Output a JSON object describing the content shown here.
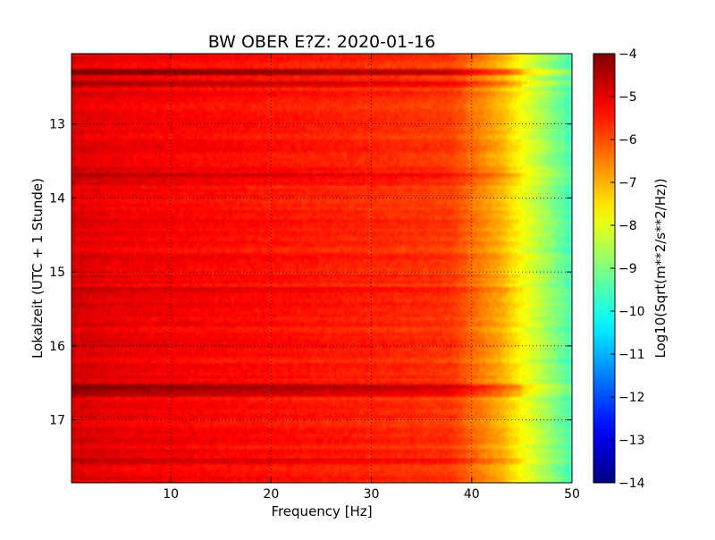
{
  "chart_data": {
    "type": "heatmap",
    "title": "BW OBER E?Z: 2020-01-16",
    "xlabel": "Frequency [Hz]",
    "ylabel": "Lokalzeit (UTC + 1 Stunde)",
    "xlim": [
      0.1,
      50
    ],
    "ylim": [
      12.05,
      17.85
    ],
    "y_inverted": true,
    "x_ticks": [
      10,
      20,
      30,
      40,
      50
    ],
    "y_ticks": [
      13,
      14,
      15,
      16,
      17
    ],
    "grid": true,
    "colorbar": {
      "label": "Log10(Sqrt(m**2/s**2/Hz))",
      "range": [
        -14,
        -4
      ],
      "ticks": [
        -4,
        -5,
        -6,
        -7,
        -8,
        -9,
        -10,
        -11,
        -12,
        -13,
        -14
      ],
      "colormap": "jet"
    },
    "spectral_profile": {
      "frequency_hz": [
        0.1,
        5,
        10,
        20,
        30,
        38,
        40,
        43,
        45,
        47,
        50
      ],
      "log10_level": [
        -4.9,
        -5.1,
        -5.2,
        -5.4,
        -5.6,
        -5.8,
        -6.3,
        -7.0,
        -7.8,
        -8.5,
        -9.6
      ]
    },
    "bands": [
      {
        "time": 12.3,
        "level_offset": 0.9
      },
      {
        "time": 12.45,
        "level_offset": 0.5
      },
      {
        "time": 13.7,
        "level_offset": 0.4
      },
      {
        "time": 15.25,
        "level_offset": 0.35
      },
      {
        "time": 16.55,
        "level_offset": 0.95
      },
      {
        "time": 16.65,
        "level_offset": 0.6
      },
      {
        "time": 17.55,
        "level_offset": 0.4
      }
    ]
  }
}
